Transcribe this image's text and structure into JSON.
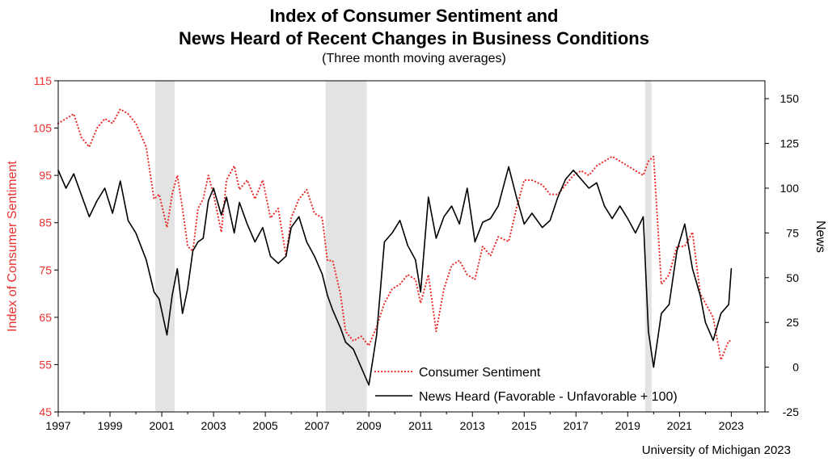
{
  "chart_data": {
    "type": "line",
    "title": "Index of Consumer Sentiment and",
    "title_line2": "News Heard of Recent Changes in Business Conditions",
    "subtitle": "(Three month moving averages)",
    "ylabel_left": "Index of Consumer Sentiment",
    "ylabel_right": "News",
    "source": "University of Michigan 2023",
    "xlim": [
      1997,
      2024.3
    ],
    "ylim_left": [
      45,
      115
    ],
    "ylim_right": [
      -25,
      160
    ],
    "x_ticks": [
      "1997",
      "1999",
      "2001",
      "2003",
      "2005",
      "2007",
      "2009",
      "2011",
      "2013",
      "2015",
      "2017",
      "2019",
      "2021",
      "2023"
    ],
    "left_ticks": [
      "45",
      "55",
      "65",
      "75",
      "85",
      "95",
      "105",
      "115"
    ],
    "right_ticks": [
      "-25",
      "0",
      "25",
      "50",
      "75",
      "100",
      "125",
      "150"
    ],
    "left_color": "#e8302f",
    "right_color": "#000000",
    "recessions": [
      [
        2000.75,
        2001.5
      ],
      [
        2007.33,
        2008.92
      ],
      [
        2019.67,
        2019.92
      ]
    ],
    "legend_position": "bottom-center",
    "series": [
      {
        "name": "Consumer Sentiment",
        "axis": "left",
        "color": "#e8302f",
        "style": "dotted",
        "x": [
          1997.0,
          1997.3,
          1997.6,
          1997.9,
          1998.2,
          1998.5,
          1998.8,
          1999.1,
          1999.4,
          1999.7,
          2000.0,
          2000.4,
          2000.7,
          2000.9,
          2001.2,
          2001.4,
          2001.6,
          2001.8,
          2002.0,
          2002.2,
          2002.4,
          2002.6,
          2002.8,
          2003.0,
          2003.3,
          2003.5,
          2003.8,
          2004.0,
          2004.3,
          2004.6,
          2004.9,
          2005.2,
          2005.5,
          2005.8,
          2006.0,
          2006.3,
          2006.6,
          2006.9,
          2007.2,
          2007.4,
          2007.6,
          2007.9,
          2008.1,
          2008.4,
          2008.7,
          2009.0,
          2009.3,
          2009.6,
          2009.9,
          2010.2,
          2010.5,
          2010.8,
          2011.0,
          2011.3,
          2011.6,
          2011.9,
          2012.2,
          2012.5,
          2012.8,
          2013.1,
          2013.4,
          2013.7,
          2014.0,
          2014.4,
          2014.7,
          2015.0,
          2015.3,
          2015.7,
          2016.0,
          2016.3,
          2016.6,
          2016.9,
          2017.2,
          2017.5,
          2017.8,
          2018.1,
          2018.4,
          2018.7,
          2019.0,
          2019.3,
          2019.6,
          2019.8,
          2020.0,
          2020.3,
          2020.6,
          2020.9,
          2021.2,
          2021.5,
          2021.8,
          2022.0,
          2022.3,
          2022.6,
          2022.9,
          2023.0
        ],
        "values": [
          106,
          107,
          108,
          103,
          101,
          105,
          107,
          106,
          109,
          108,
          106,
          101,
          90,
          91,
          84,
          91,
          95,
          88,
          80,
          79,
          88,
          90,
          95,
          91,
          83,
          94,
          97,
          92,
          94,
          90,
          94,
          86,
          88,
          78,
          86,
          90,
          92,
          87,
          86,
          77,
          77,
          70,
          62,
          60,
          61,
          59,
          63,
          68,
          71,
          72,
          74,
          73,
          68,
          74,
          62,
          71,
          76,
          77,
          74,
          73,
          80,
          78,
          82,
          81,
          88,
          94,
          94,
          93,
          91,
          91,
          93,
          95,
          96,
          95,
          97,
          98,
          99,
          98,
          97,
          96,
          95,
          98,
          99,
          72,
          74,
          80,
          80,
          83,
          70,
          68,
          65,
          56,
          60,
          60
        ]
      },
      {
        "name": "News Heard (Favorable - Unfavorable + 100)",
        "axis": "right",
        "color": "#000000",
        "style": "solid",
        "x": [
          1997.0,
          1997.3,
          1997.6,
          1997.9,
          1998.2,
          1998.5,
          1998.8,
          1999.1,
          1999.4,
          1999.7,
          2000.0,
          2000.4,
          2000.7,
          2000.9,
          2001.2,
          2001.4,
          2001.6,
          2001.8,
          2002.0,
          2002.2,
          2002.4,
          2002.6,
          2002.8,
          2003.0,
          2003.3,
          2003.5,
          2003.8,
          2004.0,
          2004.3,
          2004.6,
          2004.9,
          2005.2,
          2005.5,
          2005.8,
          2006.0,
          2006.3,
          2006.6,
          2006.9,
          2007.2,
          2007.4,
          2007.6,
          2007.9,
          2008.1,
          2008.4,
          2008.7,
          2009.0,
          2009.3,
          2009.6,
          2009.9,
          2010.2,
          2010.5,
          2010.8,
          2011.0,
          2011.3,
          2011.6,
          2011.9,
          2012.2,
          2012.5,
          2012.8,
          2013.1,
          2013.4,
          2013.7,
          2014.0,
          2014.4,
          2014.7,
          2015.0,
          2015.3,
          2015.7,
          2016.0,
          2016.3,
          2016.6,
          2016.9,
          2017.2,
          2017.5,
          2017.8,
          2018.1,
          2018.4,
          2018.7,
          2019.0,
          2019.3,
          2019.6,
          2019.8,
          2020.0,
          2020.3,
          2020.6,
          2020.9,
          2021.2,
          2021.5,
          2021.8,
          2022.0,
          2022.3,
          2022.6,
          2022.9,
          2023.0
        ],
        "values": [
          110,
          100,
          108,
          96,
          84,
          93,
          100,
          86,
          104,
          82,
          75,
          60,
          42,
          38,
          18,
          40,
          55,
          30,
          44,
          65,
          70,
          72,
          93,
          100,
          85,
          95,
          75,
          92,
          80,
          70,
          78,
          62,
          58,
          62,
          78,
          84,
          70,
          62,
          52,
          40,
          32,
          22,
          14,
          10,
          0,
          -10,
          18,
          70,
          75,
          82,
          68,
          60,
          42,
          95,
          72,
          84,
          90,
          80,
          100,
          70,
          81,
          83,
          90,
          112,
          95,
          80,
          86,
          78,
          82,
          95,
          105,
          110,
          105,
          100,
          103,
          90,
          83,
          90,
          83,
          75,
          84,
          20,
          0,
          30,
          35,
          65,
          80,
          55,
          40,
          25,
          15,
          30,
          35,
          55
        ]
      }
    ]
  }
}
